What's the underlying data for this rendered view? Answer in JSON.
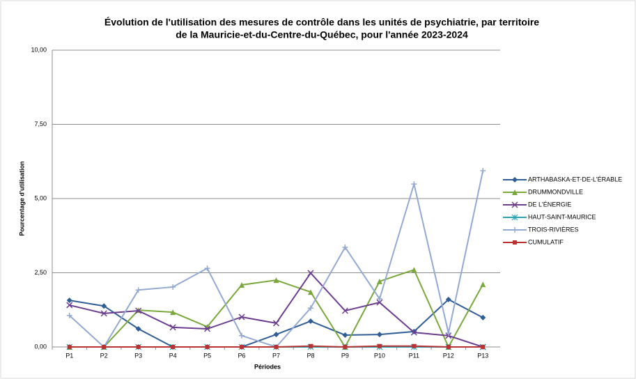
{
  "chart_data": {
    "type": "line",
    "title": [
      "Évolution de l'utilisation des mesures de contrôle dans les unités de psychiatrie, par territoire",
      "de la Mauricie-et-du-Centre-du-Québec, pour l'année 2023-2024"
    ],
    "x_label": "Périodes",
    "y_label": "Pourcentage d'utilisation",
    "categories": [
      "P1",
      "P2",
      "P3",
      "P4",
      "P5",
      "P6",
      "P7",
      "P8",
      "P9",
      "P10",
      "P11",
      "P12",
      "P13"
    ],
    "ylim": [
      0,
      10
    ],
    "yticks": [
      {
        "value": 0,
        "label": "0,00"
      },
      {
        "value": 2.5,
        "label": "2,50"
      },
      {
        "value": 5,
        "label": "5,00"
      },
      {
        "value": 7.5,
        "label": "7,50"
      },
      {
        "value": 10,
        "label": "10,00"
      }
    ],
    "grid": true,
    "legend": "right",
    "series": [
      {
        "name": "ARTHABASKA-ET-DE-L'ÉRABLE",
        "color": "#2f5d96",
        "marker": "diamond",
        "values": [
          1.57,
          1.38,
          0.61,
          0,
          0,
          0,
          0.42,
          0.87,
          0.4,
          0.42,
          0.52,
          1.6,
          0.99
        ]
      },
      {
        "name": "DRUMMONDVILLE",
        "color": "#7aa83c",
        "marker": "triangle",
        "values": [
          0,
          0,
          1.24,
          1.17,
          0.68,
          2.09,
          2.25,
          1.85,
          0,
          2.21,
          2.6,
          0,
          2.11
        ]
      },
      {
        "name": "DE L'ÉNERGIE",
        "color": "#6a3d8f",
        "marker": "x",
        "values": [
          1.41,
          1.13,
          1.22,
          0.66,
          0.61,
          1.01,
          0.8,
          2.49,
          1.22,
          1.5,
          0.49,
          0.38,
          0
        ]
      },
      {
        "name": "HAUT-SAINT-MAURICE",
        "color": "#2aa3b5",
        "marker": "star",
        "values": [
          0,
          0,
          0,
          0,
          0,
          0,
          0,
          0,
          0,
          0,
          0,
          0,
          0
        ]
      },
      {
        "name": "TROIS-RIVIÈRES",
        "color": "#93a9d2",
        "marker": "plus",
        "values": [
          1.06,
          0,
          1.92,
          2.02,
          2.65,
          0.38,
          0,
          1.31,
          3.36,
          1.62,
          5.49,
          0.47,
          5.94
        ]
      },
      {
        "name": "CUMULATIF",
        "color": "#b83232",
        "marker": "square",
        "values": [
          0,
          0,
          0,
          0,
          0,
          0,
          0,
          0.03,
          0,
          0.03,
          0.03,
          0,
          0
        ]
      }
    ]
  }
}
